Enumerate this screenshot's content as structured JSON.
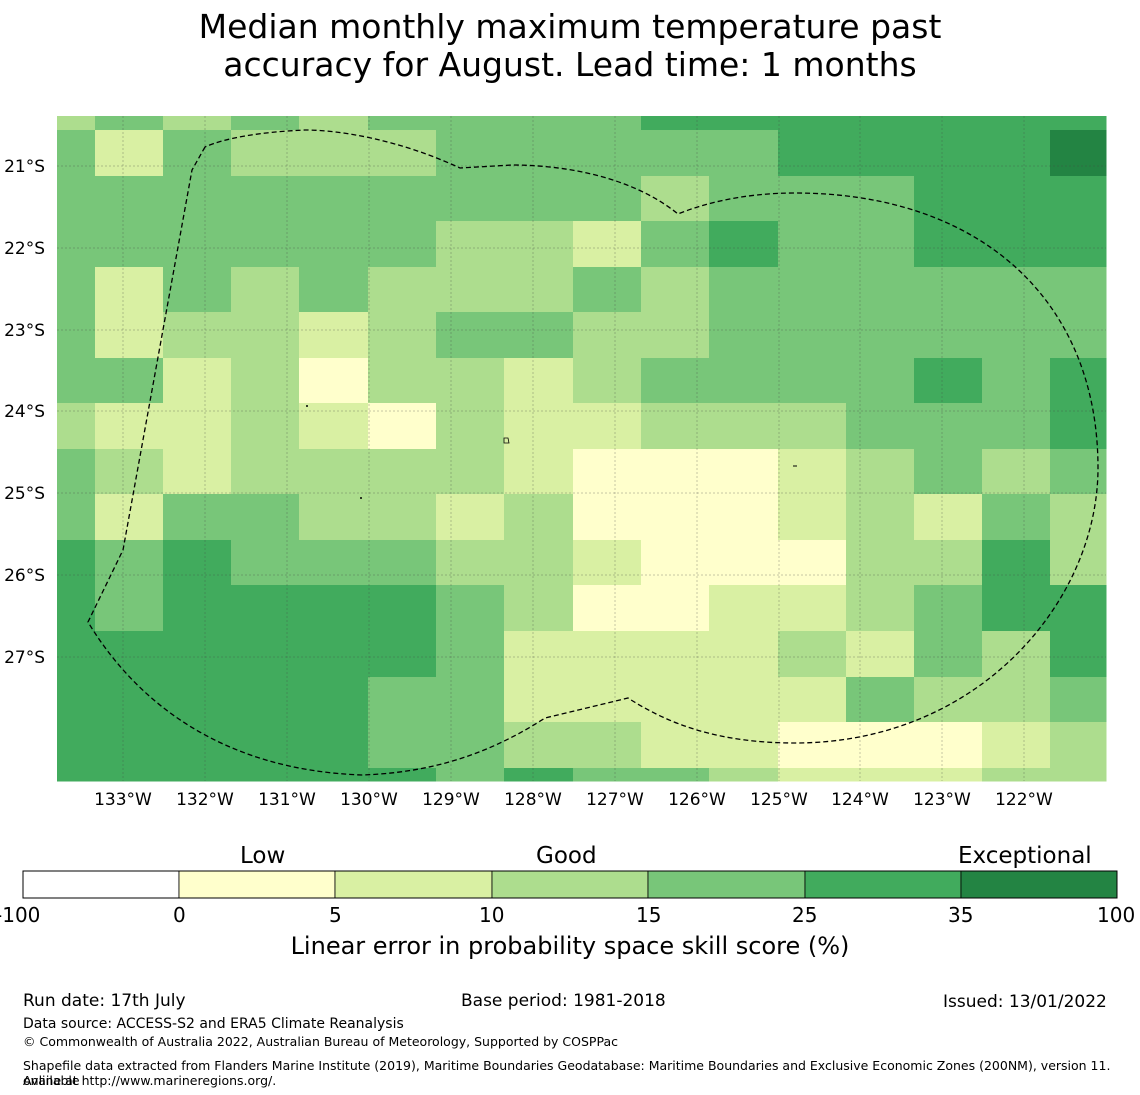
{
  "title": {
    "line1": "Median monthly maximum temperature past",
    "line2": "accuracy for August. Lead time: 1 months"
  },
  "map": {
    "lat_labels": [
      "21°S",
      "22°S",
      "23°S",
      "24°S",
      "25°S",
      "26°S",
      "27°S"
    ],
    "lon_labels": [
      "133°W",
      "132°W",
      "131°W",
      "130°W",
      "129°W",
      "128°W",
      "127°W",
      "126°W",
      "125°W",
      "124°W",
      "123°W",
      "122°W"
    ],
    "grid_skill_classes": [
      [
        2,
        1,
        1,
        1,
        1,
        1,
        1,
        2,
        1,
        1,
        0,
        0,
        0,
        0,
        0,
        0
      ],
      [
        1,
        3,
        1,
        1,
        3,
        3,
        1,
        3,
        2,
        3,
        1,
        1,
        0,
        0,
        0,
        0
      ],
      [
        2,
        1,
        1,
        1,
        1,
        2,
        3,
        3,
        3,
        1,
        0,
        0,
        0,
        0,
        0,
        0
      ],
      [
        1,
        2,
        1,
        1,
        2,
        2,
        2,
        2,
        2,
        1,
        1,
        0,
        0,
        0,
        0,
        0
      ],
      [
        2,
        2,
        1,
        1,
        1,
        3,
        4,
        3,
        2,
        2,
        1,
        0,
        0,
        0,
        0,
        0
      ],
      [
        1,
        2,
        1,
        1,
        2,
        2,
        2,
        4,
        2,
        2,
        1,
        0,
        0,
        1,
        1,
        0
      ],
      [
        1,
        1,
        1,
        2,
        2,
        1,
        2,
        2,
        2,
        3,
        2,
        1,
        1,
        1,
        1,
        1
      ],
      [
        1,
        1,
        1,
        2,
        2,
        1,
        3,
        3,
        3,
        2,
        2,
        2,
        3,
        3,
        2,
        0
      ],
      [
        1,
        1,
        1,
        3,
        1,
        2,
        2,
        3,
        4,
        4,
        3,
        4,
        3,
        3,
        2,
        1
      ],
      [
        0,
        1,
        2,
        1,
        2,
        2,
        1,
        2,
        4,
        4,
        4,
        4,
        3,
        3,
        3,
        1
      ],
      [
        0,
        1,
        1,
        0,
        1,
        1,
        1,
        2,
        4,
        4,
        4,
        3,
        3,
        3,
        3,
        2
      ],
      [
        0,
        0,
        1,
        1,
        1,
        1,
        1,
        2,
        3,
        3,
        4,
        3,
        2,
        3,
        4,
        3
      ],
      [
        0,
        0,
        1,
        1,
        1,
        1,
        1,
        1,
        2,
        2,
        2,
        2,
        3,
        1,
        4,
        3
      ],
      [
        0,
        0,
        0,
        0,
        1,
        1,
        0,
        1,
        1,
        3,
        2,
        1,
        1,
        2,
        4,
        3
      ],
      [
        0,
        0,
        0,
        0,
        1,
        1,
        1,
        1,
        2,
        1,
        0,
        0,
        2,
        2,
        3,
        2
      ],
      [
        0,
        -1,
        0,
        0,
        1,
        1,
        0,
        0,
        1,
        2,
        2,
        0,
        0,
        1,
        2,
        2
      ]
    ]
  },
  "legend": {
    "low": "Low",
    "good": "Good",
    "exceptional": "Exceptional",
    "ticks": [
      "-100",
      "0",
      "5",
      "10",
      "15",
      "25",
      "35",
      "100"
    ],
    "title": "Linear error in probability space skill score (%)",
    "colors": [
      "#ffffff",
      "#ffffcc",
      "#d9f0a3",
      "#addd8e",
      "#78c679",
      "#41ab5d",
      "#238443"
    ]
  },
  "footer": {
    "run_date": "Run date: 17th July",
    "base_period": "Base period: 1981-2018",
    "issued": "Issued: 13/01/2022",
    "data_source": "Data source: ACCESS-S2 and ERA5 Climate Reanalysis",
    "copyright": "© Commonwealth of Australia 2022, Australian Bureau of Meteorology, Supported by COSPPac",
    "shapefile_line1": "Shapefile data extracted from Flanders Marine Institute (2019), Maritime Boundaries Geodatabase: Maritime Boundaries and Exclusive Economic Zones (200NM), version 11. Available",
    "shapefile_line2": "online at http://www.marineregions.org/."
  }
}
